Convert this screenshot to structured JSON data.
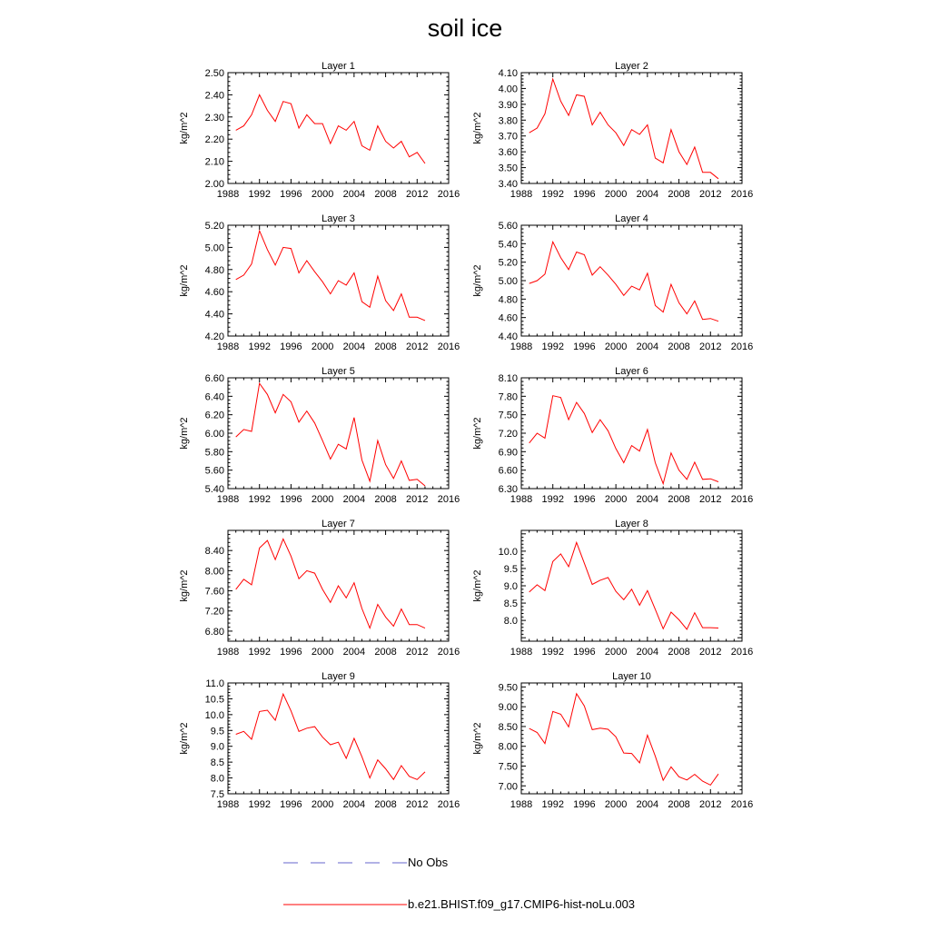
{
  "title": "soil ice",
  "legend": {
    "obs_label": "No Obs",
    "model_label": "b.e21.BHIST.f09_g17.CMIP6-hist-noLu.003",
    "obs_color": "#6666cc",
    "model_color": "#ff0000"
  },
  "chart_data": [
    {
      "type": "line",
      "title": "Layer 1",
      "ylabel": "kg/m^2",
      "xlim": [
        1988,
        2016
      ],
      "xticks": [
        "1988",
        "1992",
        "1996",
        "2000",
        "2004",
        "2008",
        "2012",
        "2016"
      ],
      "ylim": [
        2.0,
        2.5
      ],
      "yticks": [
        "2.00",
        "2.10",
        "2.20",
        "2.30",
        "2.40",
        "2.50"
      ],
      "x": [
        1989,
        1990,
        1991,
        1992,
        1993,
        1994,
        1995,
        1996,
        1997,
        1998,
        1999,
        2000,
        2001,
        2002,
        2003,
        2004,
        2005,
        2006,
        2007,
        2008,
        2009,
        2010,
        2011,
        2012,
        2013
      ],
      "series": [
        {
          "name": "b.e21.BHIST.f09_g17.CMIP6-hist-noLu.003",
          "values": [
            2.24,
            2.26,
            2.31,
            2.4,
            2.33,
            2.28,
            2.37,
            2.36,
            2.25,
            2.31,
            2.27,
            2.27,
            2.18,
            2.26,
            2.24,
            2.28,
            2.17,
            2.15,
            2.26,
            2.19,
            2.16,
            2.19,
            2.12,
            2.14,
            2.09
          ]
        }
      ]
    },
    {
      "type": "line",
      "title": "Layer 2",
      "ylabel": "kg/m^2",
      "xlim": [
        1988,
        2016
      ],
      "xticks": [
        "1988",
        "1992",
        "1996",
        "2000",
        "2004",
        "2008",
        "2012",
        "2016"
      ],
      "ylim": [
        3.4,
        4.1
      ],
      "yticks": [
        "3.40",
        "3.50",
        "3.60",
        "3.70",
        "3.80",
        "3.90",
        "4.00",
        "4.10"
      ],
      "x": [
        1989,
        1990,
        1991,
        1992,
        1993,
        1994,
        1995,
        1996,
        1997,
        1998,
        1999,
        2000,
        2001,
        2002,
        2003,
        2004,
        2005,
        2006,
        2007,
        2008,
        2009,
        2010,
        2011,
        2012,
        2013
      ],
      "series": [
        {
          "name": "b.e21.BHIST.f09_g17.CMIP6-hist-noLu.003",
          "values": [
            3.72,
            3.75,
            3.84,
            4.06,
            3.92,
            3.83,
            3.96,
            3.95,
            3.77,
            3.85,
            3.77,
            3.72,
            3.64,
            3.74,
            3.71,
            3.77,
            3.56,
            3.53,
            3.74,
            3.6,
            3.52,
            3.63,
            3.47,
            3.47,
            3.43
          ]
        }
      ]
    },
    {
      "type": "line",
      "title": "Layer 3",
      "ylabel": "kg/m^2",
      "xlim": [
        1988,
        2016
      ],
      "xticks": [
        "1988",
        "1992",
        "1996",
        "2000",
        "2004",
        "2008",
        "2012",
        "2016"
      ],
      "ylim": [
        4.2,
        5.2
      ],
      "yticks": [
        "4.20",
        "4.40",
        "4.60",
        "4.80",
        "5.00",
        "5.20"
      ],
      "x": [
        1989,
        1990,
        1991,
        1992,
        1993,
        1994,
        1995,
        1996,
        1997,
        1998,
        1999,
        2000,
        2001,
        2002,
        2003,
        2004,
        2005,
        2006,
        2007,
        2008,
        2009,
        2010,
        2011,
        2012,
        2013
      ],
      "series": [
        {
          "name": "b.e21.BHIST.f09_g17.CMIP6-hist-noLu.003",
          "values": [
            4.71,
            4.75,
            4.85,
            5.15,
            4.98,
            4.84,
            5.0,
            4.99,
            4.77,
            4.88,
            4.78,
            4.69,
            4.58,
            4.7,
            4.66,
            4.77,
            4.51,
            4.46,
            4.74,
            4.52,
            4.43,
            4.58,
            4.37,
            4.37,
            4.34
          ]
        }
      ]
    },
    {
      "type": "line",
      "title": "Layer 4",
      "ylabel": "kg/m^2",
      "xlim": [
        1988,
        2016
      ],
      "xticks": [
        "1988",
        "1992",
        "1996",
        "2000",
        "2004",
        "2008",
        "2012",
        "2016"
      ],
      "ylim": [
        4.4,
        5.6
      ],
      "yticks": [
        "4.40",
        "4.60",
        "4.80",
        "5.00",
        "5.20",
        "5.40",
        "5.60"
      ],
      "x": [
        1989,
        1990,
        1991,
        1992,
        1993,
        1994,
        1995,
        1996,
        1997,
        1998,
        1999,
        2000,
        2001,
        2002,
        2003,
        2004,
        2005,
        2006,
        2007,
        2008,
        2009,
        2010,
        2011,
        2012,
        2013
      ],
      "series": [
        {
          "name": "b.e21.BHIST.f09_g17.CMIP6-hist-noLu.003",
          "values": [
            4.97,
            5.0,
            5.07,
            5.42,
            5.25,
            5.12,
            5.31,
            5.28,
            5.06,
            5.15,
            5.06,
            4.96,
            4.84,
            4.94,
            4.9,
            5.08,
            4.73,
            4.66,
            4.96,
            4.76,
            4.64,
            4.78,
            4.58,
            4.59,
            4.56
          ]
        }
      ]
    },
    {
      "type": "line",
      "title": "Layer 5",
      "ylabel": "kg/m^2",
      "xlim": [
        1988,
        2016
      ],
      "xticks": [
        "1988",
        "1992",
        "1996",
        "2000",
        "2004",
        "2008",
        "2012",
        "2016"
      ],
      "ylim": [
        5.4,
        6.6
      ],
      "yticks": [
        "5.40",
        "5.60",
        "5.80",
        "6.00",
        "6.20",
        "6.40",
        "6.60"
      ],
      "x": [
        1989,
        1990,
        1991,
        1992,
        1993,
        1994,
        1995,
        1996,
        1997,
        1998,
        1999,
        2000,
        2001,
        2002,
        2003,
        2004,
        2005,
        2006,
        2007,
        2008,
        2009,
        2010,
        2011,
        2012,
        2013
      ],
      "series": [
        {
          "name": "b.e21.BHIST.f09_g17.CMIP6-hist-noLu.003",
          "values": [
            5.96,
            6.04,
            6.02,
            6.54,
            6.42,
            6.22,
            6.42,
            6.34,
            6.12,
            6.24,
            6.11,
            5.92,
            5.72,
            5.88,
            5.83,
            6.17,
            5.71,
            5.48,
            5.92,
            5.66,
            5.51,
            5.7,
            5.49,
            5.5,
            5.43
          ]
        }
      ]
    },
    {
      "type": "line",
      "title": "Layer 6",
      "ylabel": "kg/m^2",
      "xlim": [
        1988,
        2016
      ],
      "xticks": [
        "1988",
        "1992",
        "1996",
        "2000",
        "2004",
        "2008",
        "2012",
        "2016"
      ],
      "ylim": [
        6.3,
        8.1
      ],
      "yticks": [
        "6.30",
        "6.60",
        "6.90",
        "7.20",
        "7.50",
        "7.80",
        "8.10"
      ],
      "x": [
        1989,
        1990,
        1991,
        1992,
        1993,
        1994,
        1995,
        1996,
        1997,
        1998,
        1999,
        2000,
        2001,
        2002,
        2003,
        2004,
        2005,
        2006,
        2007,
        2008,
        2009,
        2010,
        2011,
        2012,
        2013
      ],
      "series": [
        {
          "name": "b.e21.BHIST.f09_g17.CMIP6-hist-noLu.003",
          "values": [
            7.04,
            7.2,
            7.12,
            7.81,
            7.78,
            7.42,
            7.7,
            7.52,
            7.21,
            7.42,
            7.24,
            6.95,
            6.72,
            7.0,
            6.91,
            7.26,
            6.72,
            6.38,
            6.88,
            6.6,
            6.45,
            6.73,
            6.45,
            6.46,
            6.41
          ]
        }
      ]
    },
    {
      "type": "line",
      "title": "Layer 7",
      "ylabel": "kg/m^2",
      "xlim": [
        1988,
        2016
      ],
      "xticks": [
        "1988",
        "1992",
        "1996",
        "2000",
        "2004",
        "2008",
        "2012",
        "2016"
      ],
      "ylim": [
        6.6,
        8.8
      ],
      "yticks": [
        "6.80",
        "7.20",
        "7.60",
        "8.00",
        "8.40"
      ],
      "x": [
        1989,
        1990,
        1991,
        1992,
        1993,
        1994,
        1995,
        1996,
        1997,
        1998,
        1999,
        2000,
        2001,
        2002,
        2003,
        2004,
        2005,
        2006,
        2007,
        2008,
        2009,
        2010,
        2011,
        2012,
        2013
      ],
      "series": [
        {
          "name": "b.e21.BHIST.f09_g17.CMIP6-hist-noLu.003",
          "values": [
            7.63,
            7.83,
            7.72,
            8.45,
            8.6,
            8.22,
            8.63,
            8.29,
            7.84,
            8.0,
            7.95,
            7.63,
            7.37,
            7.7,
            7.46,
            7.76,
            7.25,
            6.86,
            7.33,
            7.08,
            6.9,
            7.24,
            6.93,
            6.93,
            6.86
          ]
        }
      ]
    },
    {
      "type": "line",
      "title": "Layer 8",
      "ylabel": "kg/m^2",
      "xlim": [
        1988,
        2016
      ],
      "xticks": [
        "1988",
        "1992",
        "1996",
        "2000",
        "2004",
        "2008",
        "2012",
        "2016"
      ],
      "ylim": [
        7.4,
        10.6
      ],
      "yticks": [
        "8.0",
        "8.5",
        "9.0",
        "9.5",
        "10.0"
      ],
      "x": [
        1989,
        1990,
        1991,
        1992,
        1993,
        1994,
        1995,
        1996,
        1997,
        1998,
        1999,
        2000,
        2001,
        2002,
        2003,
        2004,
        2005,
        2006,
        2007,
        2008,
        2009,
        2010,
        2011,
        2012,
        2013
      ],
      "series": [
        {
          "name": "b.e21.BHIST.f09_g17.CMIP6-hist-noLu.003",
          "values": [
            8.82,
            9.03,
            8.86,
            9.7,
            9.92,
            9.55,
            10.25,
            9.65,
            9.04,
            9.16,
            9.24,
            8.84,
            8.6,
            8.9,
            8.44,
            8.86,
            8.32,
            7.76,
            8.24,
            8.02,
            7.74,
            8.22,
            7.79,
            7.79,
            7.78
          ]
        }
      ]
    },
    {
      "type": "line",
      "title": "Layer 9",
      "ylabel": "kg/m^2",
      "xlim": [
        1988,
        2016
      ],
      "xticks": [
        "1988",
        "1992",
        "1996",
        "2000",
        "2004",
        "2008",
        "2012",
        "2016"
      ],
      "ylim": [
        7.5,
        11.0
      ],
      "yticks": [
        "7.5",
        "8.0",
        "8.5",
        "9.0",
        "9.5",
        "10.0",
        "10.5",
        "11.0"
      ],
      "x": [
        1989,
        1990,
        1991,
        1992,
        1993,
        1994,
        1995,
        1996,
        1997,
        1998,
        1999,
        2000,
        2001,
        2002,
        2003,
        2004,
        2005,
        2006,
        2007,
        2008,
        2009,
        2010,
        2011,
        2012,
        2013
      ],
      "series": [
        {
          "name": "b.e21.BHIST.f09_g17.CMIP6-hist-noLu.003",
          "values": [
            9.38,
            9.47,
            9.22,
            10.1,
            10.14,
            9.82,
            10.65,
            10.12,
            9.47,
            9.57,
            9.62,
            9.29,
            9.05,
            9.13,
            8.62,
            9.25,
            8.67,
            8.0,
            8.57,
            8.29,
            7.95,
            8.39,
            8.05,
            7.95,
            8.19
          ]
        }
      ]
    },
    {
      "type": "line",
      "title": "Layer 10",
      "ylabel": "kg/m^2",
      "xlim": [
        1988,
        2016
      ],
      "xticks": [
        "1988",
        "1992",
        "1996",
        "2000",
        "2004",
        "2008",
        "2012",
        "2016"
      ],
      "ylim": [
        6.8,
        9.6
      ],
      "yticks": [
        "7.00",
        "7.50",
        "8.00",
        "8.50",
        "9.00",
        "9.50"
      ],
      "x": [
        1989,
        1990,
        1991,
        1992,
        1993,
        1994,
        1995,
        1996,
        1997,
        1998,
        1999,
        2000,
        2001,
        2002,
        2003,
        2004,
        2005,
        2006,
        2007,
        2008,
        2009,
        2010,
        2011,
        2012,
        2013
      ],
      "series": [
        {
          "name": "b.e21.BHIST.f09_g17.CMIP6-hist-noLu.003",
          "values": [
            8.45,
            8.35,
            8.07,
            8.88,
            8.81,
            8.49,
            9.33,
            9.02,
            8.42,
            8.46,
            8.43,
            8.24,
            7.83,
            7.82,
            7.58,
            8.28,
            7.75,
            7.14,
            7.48,
            7.23,
            7.15,
            7.29,
            7.12,
            7.02,
            7.3
          ]
        }
      ]
    }
  ]
}
